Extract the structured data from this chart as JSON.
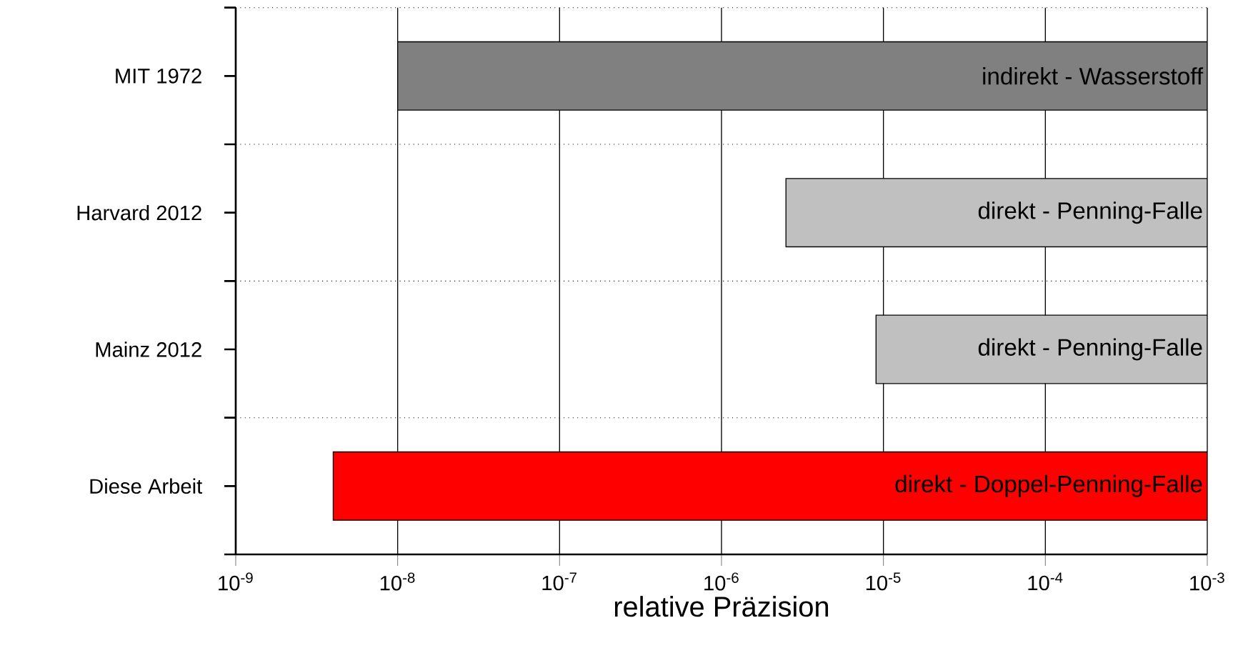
{
  "chart_data": {
    "type": "bar",
    "orientation": "horizontal",
    "log": "x",
    "categories": [
      "MIT 1972",
      "Harvard 2012",
      "Mainz 2012",
      "Diese Arbeit"
    ],
    "base": [
      1e-08,
      2.5e-06,
      9e-06,
      4e-09
    ],
    "values": [
      0.00099999,
      0.0009975,
      0.000991,
      0.000999996
    ],
    "colors": [
      "#808080",
      "#c0c0c0",
      "#c0c0c0",
      "#ff0000"
    ],
    "xlabel": "relative Präzision",
    "xlim": [
      1e-09,
      0.001
    ],
    "xticks": [
      {
        "value": 1e-09,
        "label": "10$^{-9}$"
      },
      {
        "value": 1e-08,
        "label": "10$^{-8}$"
      },
      {
        "value": 1e-07,
        "label": "10$^{-7}$"
      },
      {
        "value": 1e-06,
        "label": "10$^{-6}$"
      },
      {
        "value": 1e-05,
        "label": "10$^{-5}$"
      },
      {
        "value": 0.0001,
        "label": "10$^{-4}$"
      },
      {
        "value": 0.001,
        "label": "10$^{-3}$"
      }
    ],
    "grid": "x",
    "annotations": [
      "indirekt - Wasserstoff",
      "direkt - Penning-Falle",
      "direkt - Penning-Falle",
      "direkt - Doppel-Penning-Falle"
    ]
  }
}
